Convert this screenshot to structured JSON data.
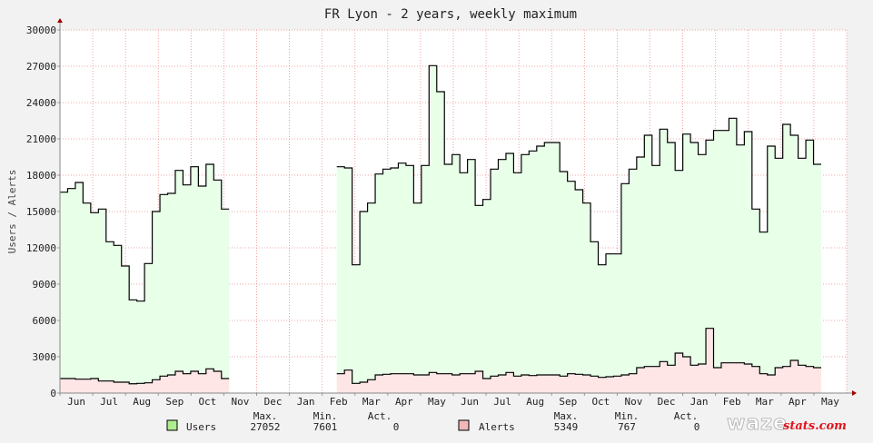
{
  "chart_data": {
    "type": "area",
    "title": "FR Lyon - 2 years, weekly maximum",
    "ylabel": "Users / Alerts",
    "ylim": [
      0,
      30000
    ],
    "yticks": [
      "0",
      "3000",
      "6000",
      "9000",
      "12000",
      "15000",
      "18000",
      "21000",
      "24000",
      "27000",
      "30000"
    ],
    "xticks": [
      "Jun",
      "Jul",
      "Aug",
      "Sep",
      "Oct",
      "Nov",
      "Dec",
      "Jan",
      "Feb",
      "Mar",
      "Apr",
      "May",
      "Jun",
      "Jul",
      "Aug",
      "Sep",
      "Oct",
      "Nov",
      "Dec",
      "Jan",
      "Feb",
      "Mar",
      "Apr",
      "May"
    ],
    "grid": true,
    "series": [
      {
        "name": "Users",
        "color": "#000000",
        "fill": "#e8ffe8",
        "swatch": "#b0ec90",
        "values": [
          16600,
          16900,
          17400,
          15700,
          14900,
          15200,
          12500,
          12200,
          10500,
          7700,
          7600,
          10700,
          15000,
          16400,
          16500,
          18400,
          17200,
          18700,
          17100,
          18900,
          17600,
          15200,
          null,
          null,
          null,
          null,
          null,
          null,
          null,
          null,
          null,
          null,
          null,
          null,
          null,
          null,
          18700,
          18600,
          10600,
          15000,
          15700,
          18100,
          18500,
          18600,
          19000,
          18800,
          15700,
          18800,
          27050,
          24900,
          18900,
          19700,
          18200,
          19300,
          15500,
          16000,
          18500,
          19300,
          19800,
          18200,
          19700,
          20000,
          20400,
          20700,
          20700,
          18300,
          17500,
          16800,
          15700,
          12500,
          10600,
          11500,
          11500,
          17300,
          18500,
          19500,
          21300,
          18800,
          21800,
          20700,
          18400,
          21400,
          20700,
          19700,
          20900,
          21700,
          21700,
          22700,
          20500,
          21600,
          15200,
          13300,
          20400,
          19400,
          22200,
          21300,
          19400,
          20900,
          18900
        ],
        "stats": {
          "max": "27052",
          "min": "7601",
          "act": "0"
        }
      },
      {
        "name": "Alerts",
        "color": "#000000",
        "fill": "#ffe6e6",
        "swatch": "#f2b8b8",
        "values": [
          1200,
          1200,
          1150,
          1150,
          1200,
          1000,
          1000,
          900,
          900,
          767,
          800,
          850,
          1100,
          1400,
          1500,
          1800,
          1600,
          1800,
          1600,
          2000,
          1800,
          1200,
          null,
          null,
          null,
          null,
          null,
          null,
          null,
          null,
          null,
          null,
          null,
          null,
          null,
          null,
          1600,
          1900,
          800,
          900,
          1100,
          1500,
          1550,
          1600,
          1600,
          1600,
          1500,
          1500,
          1700,
          1600,
          1600,
          1500,
          1600,
          1600,
          1800,
          1200,
          1400,
          1500,
          1700,
          1400,
          1500,
          1450,
          1500,
          1500,
          1500,
          1400,
          1600,
          1550,
          1500,
          1400,
          1300,
          1350,
          1400,
          1500,
          1600,
          2100,
          2200,
          2200,
          2600,
          2300,
          3300,
          3000,
          2300,
          2400,
          5349,
          2100,
          2500,
          2500,
          2500,
          2400,
          2200,
          1600,
          1500,
          2100,
          2200,
          2700,
          2300,
          2200,
          2100
        ],
        "stats": {
          "max": "5349",
          "min": "767",
          "act": "0"
        }
      }
    ]
  },
  "legend": {
    "headers": {
      "max": "Max.",
      "min": "Min.",
      "act": "Act."
    }
  },
  "logo": {
    "main": "waze",
    "sub": "stats.com"
  }
}
